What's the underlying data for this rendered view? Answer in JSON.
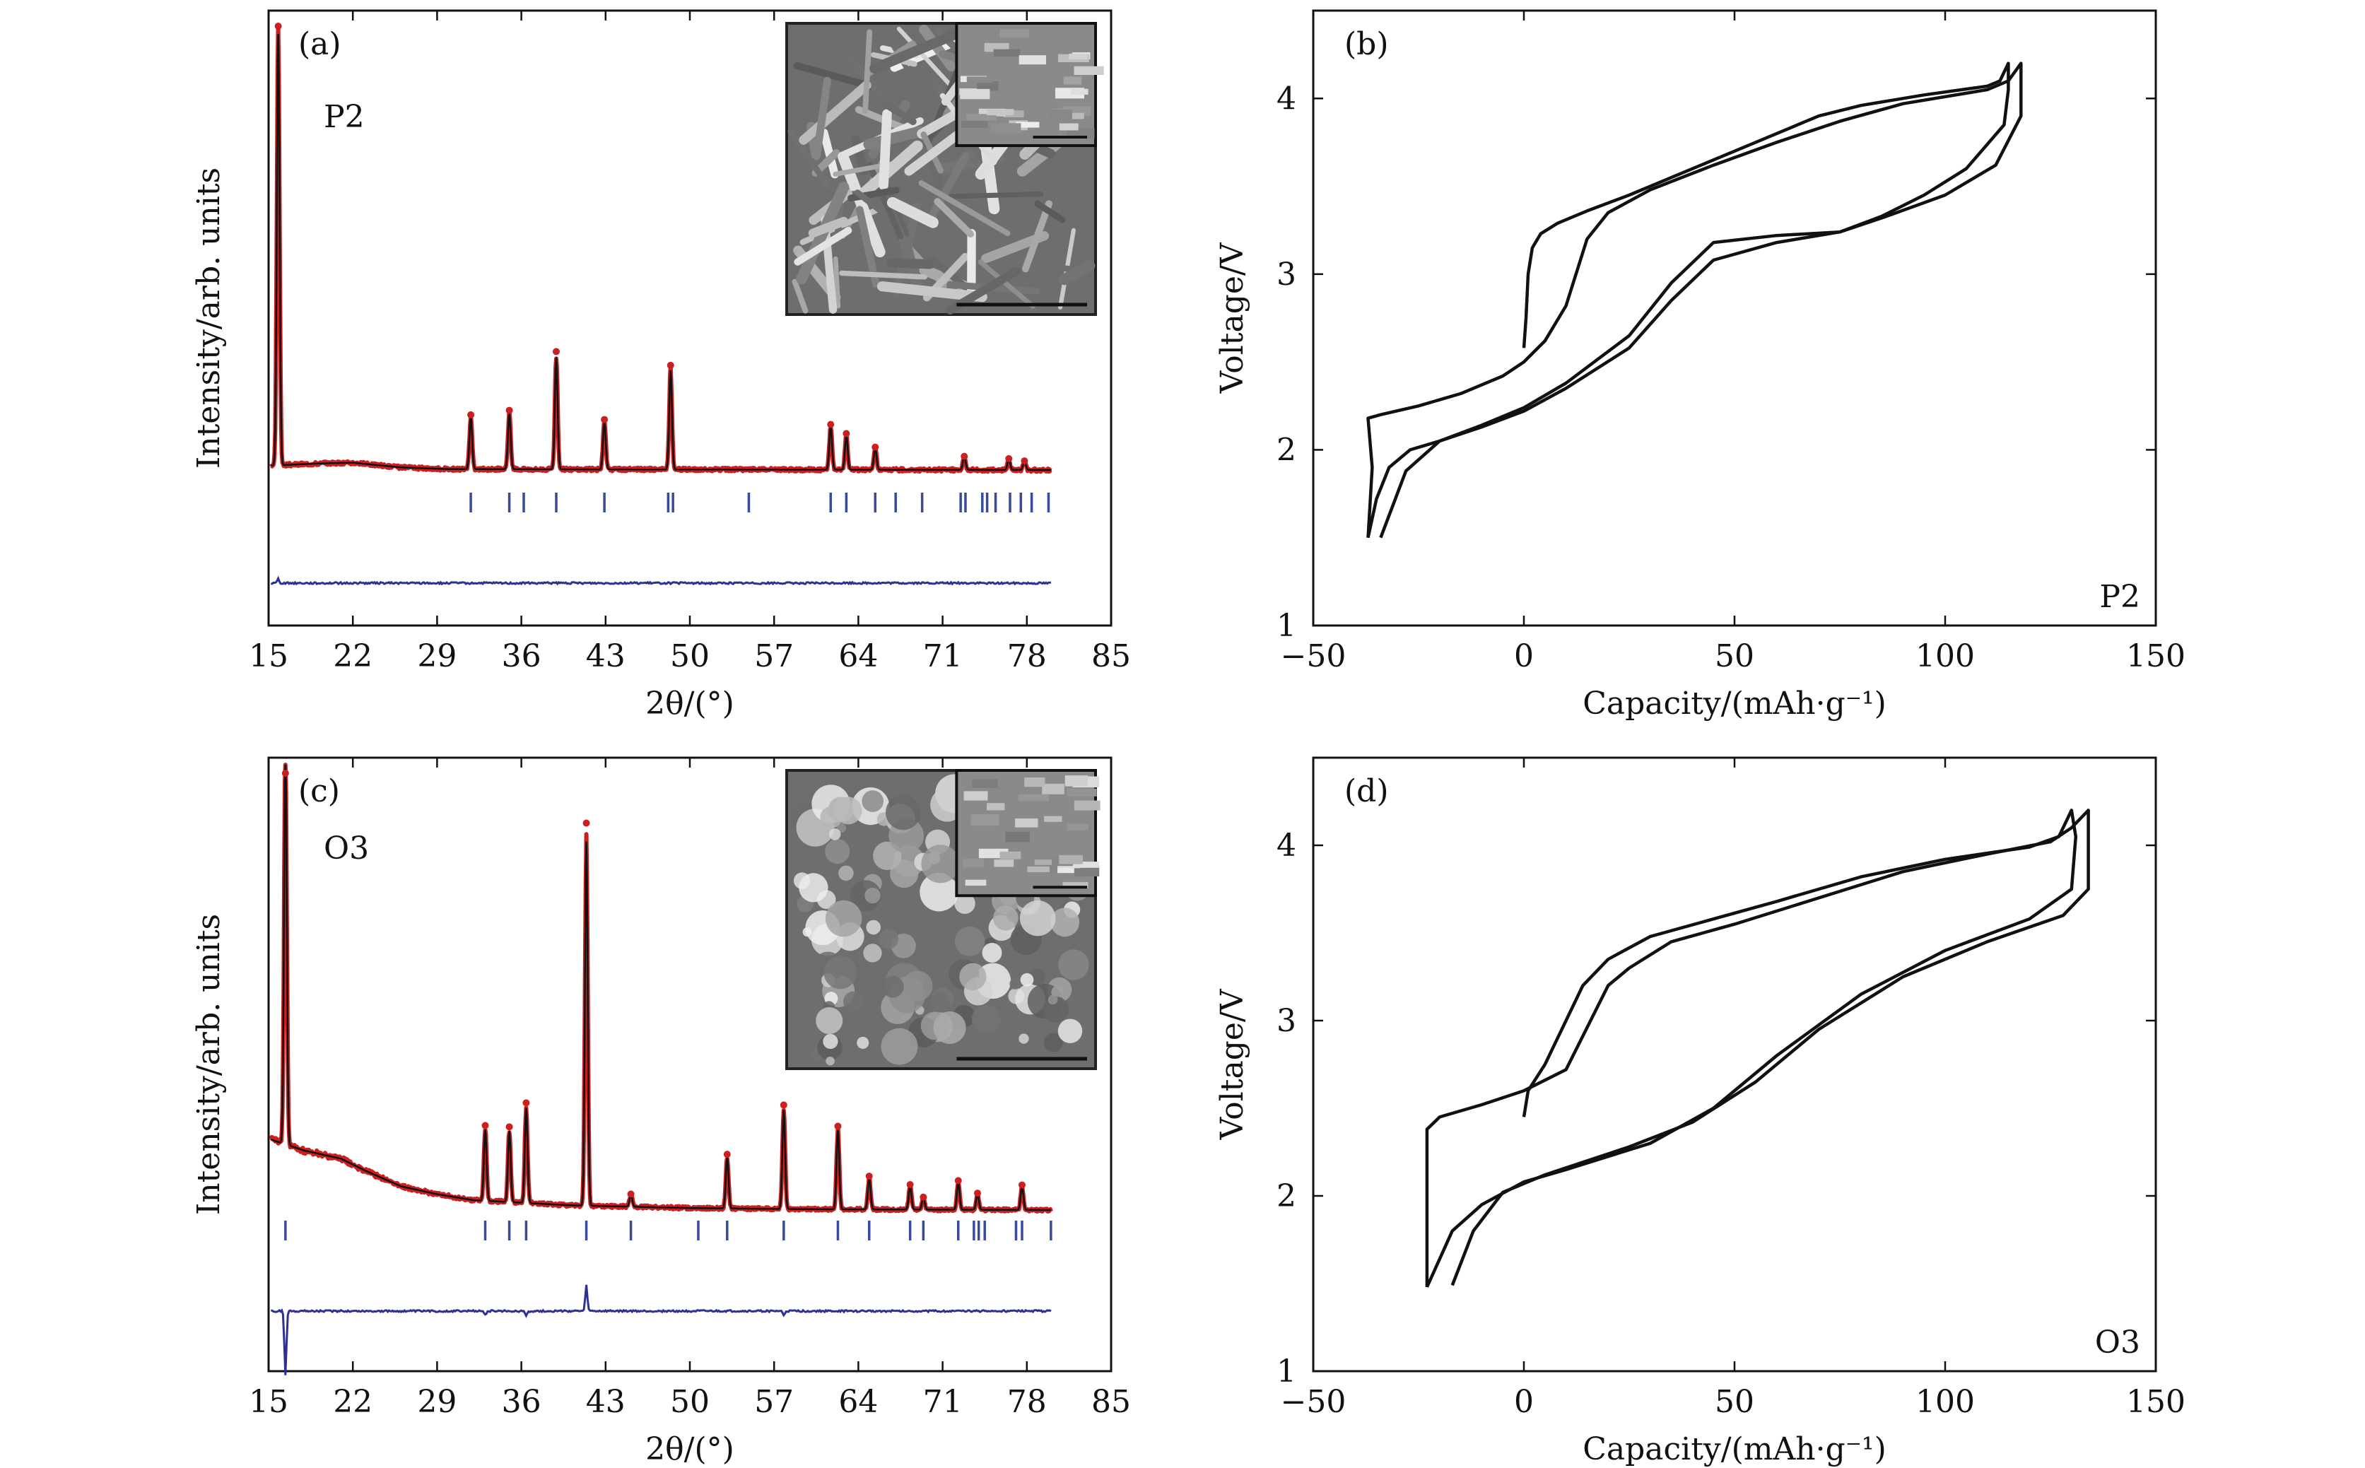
{
  "colors": {
    "observed": "#cc1f1f",
    "calculated": "#111111",
    "difference": "#2e3192",
    "bragg": "#3a4a9a",
    "cycle": "#111111",
    "frame": "#111111"
  },
  "chart_data": [
    {
      "id": "a",
      "type": "line",
      "panel_label": "(a)",
      "sample_label": "P2",
      "xlabel": "2θ/(°)",
      "ylabel": "Intensity/arb. units",
      "xlim": [
        15,
        85
      ],
      "xticks": [
        15,
        22,
        29,
        36,
        43,
        50,
        57,
        64,
        71,
        78,
        85
      ],
      "yticks": [],
      "inset": "SEM micrograph (plate-like particles) with magnified sub-inset",
      "baseline": 1.0,
      "peaks": [
        {
          "x": 15.8,
          "y": 100
        },
        {
          "x": 31.8,
          "y": 12
        },
        {
          "x": 35.0,
          "y": 13
        },
        {
          "x": 38.9,
          "y": 26
        },
        {
          "x": 42.9,
          "y": 11
        },
        {
          "x": 48.4,
          "y": 23
        },
        {
          "x": 61.7,
          "y": 10
        },
        {
          "x": 63.0,
          "y": 8
        },
        {
          "x": 65.4,
          "y": 5
        },
        {
          "x": 72.8,
          "y": 3
        },
        {
          "x": 76.5,
          "y": 2.5
        },
        {
          "x": 77.8,
          "y": 2
        }
      ],
      "bragg_positions": [
        31.8,
        35.0,
        36.2,
        38.9,
        42.9,
        48.2,
        48.6,
        54.9,
        61.7,
        63.0,
        65.4,
        67.1,
        69.3,
        72.5,
        72.9,
        74.3,
        74.7,
        75.4,
        76.6,
        77.5,
        78.4,
        79.8
      ],
      "baseline_shape": [
        [
          15,
          1.0
        ],
        [
          19,
          1.5
        ],
        [
          22,
          1.7
        ],
        [
          26,
          0.6
        ],
        [
          30,
          0.2
        ],
        [
          80,
          0.0
        ]
      ],
      "difference_spikes": [
        {
          "x": 15.8,
          "y": 2
        }
      ]
    },
    {
      "id": "b",
      "type": "line",
      "panel_label": "(b)",
      "sample_label": "P2",
      "xlabel": "Capacity/(mAh·g⁻¹)",
      "ylabel": "Voltage/V",
      "xlim": [
        -50,
        150
      ],
      "ylim": [
        1,
        4.5
      ],
      "xticks": [
        -50,
        0,
        50,
        100,
        150
      ],
      "yticks": [
        1,
        2,
        3,
        4
      ],
      "series": [
        {
          "points": [
            [
              0,
              2.58
            ],
            [
              0.5,
              2.75
            ],
            [
              1,
              3.0
            ],
            [
              2,
              3.15
            ],
            [
              4,
              3.23
            ],
            [
              8,
              3.29
            ],
            [
              15,
              3.36
            ],
            [
              25,
              3.45
            ],
            [
              40,
              3.6
            ],
            [
              55,
              3.75
            ],
            [
              70,
              3.9
            ],
            [
              80,
              3.96
            ],
            [
              95,
              4.02
            ],
            [
              110,
              4.07
            ],
            [
              113,
              4.1
            ],
            [
              115,
              4.2
            ],
            [
              115,
              4.05
            ],
            [
              114,
              3.85
            ],
            [
              105,
              3.6
            ],
            [
              95,
              3.45
            ],
            [
              85,
              3.33
            ],
            [
              75,
              3.24
            ],
            [
              60,
              3.18
            ],
            [
              45,
              3.08
            ],
            [
              35,
              2.85
            ],
            [
              25,
              2.58
            ],
            [
              10,
              2.35
            ],
            [
              0,
              2.22
            ],
            [
              -10,
              2.13
            ],
            [
              -20,
              2.05
            ],
            [
              -27,
              2.0
            ],
            [
              -32,
              1.9
            ],
            [
              -35,
              1.72
            ],
            [
              -37,
              1.5
            ]
          ]
        },
        {
          "points": [
            [
              -37,
              1.5
            ],
            [
              -36,
              1.9
            ],
            [
              -37,
              2.18
            ],
            [
              -34,
              2.2
            ],
            [
              -25,
              2.25
            ],
            [
              -15,
              2.32
            ],
            [
              -5,
              2.42
            ],
            [
              0,
              2.5
            ],
            [
              5,
              2.62
            ],
            [
              10,
              2.82
            ],
            [
              15,
              3.2
            ],
            [
              20,
              3.35
            ],
            [
              30,
              3.48
            ],
            [
              45,
              3.62
            ],
            [
              60,
              3.75
            ],
            [
              75,
              3.87
            ],
            [
              90,
              3.97
            ],
            [
              110,
              4.05
            ],
            [
              115,
              4.1
            ],
            [
              118,
              4.2
            ],
            [
              118,
              3.9
            ],
            [
              112,
              3.62
            ],
            [
              100,
              3.45
            ],
            [
              85,
              3.32
            ],
            [
              75,
              3.24
            ],
            [
              60,
              3.22
            ],
            [
              45,
              3.18
            ],
            [
              35,
              2.95
            ],
            [
              25,
              2.65
            ],
            [
              10,
              2.38
            ],
            [
              0,
              2.24
            ],
            [
              -10,
              2.14
            ],
            [
              -20,
              2.05
            ],
            [
              -28,
              1.88
            ],
            [
              -34,
              1.5
            ]
          ]
        }
      ]
    },
    {
      "id": "c",
      "type": "line",
      "panel_label": "(c)",
      "sample_label": "O3",
      "xlabel": "2θ/(°)",
      "ylabel": "Intensity/arb. units",
      "xlim": [
        15,
        85
      ],
      "xticks": [
        15,
        22,
        29,
        36,
        43,
        50,
        57,
        64,
        71,
        78,
        85
      ],
      "yticks": [],
      "inset": "SEM micrograph (agglomerated fine particles) with magnified sub-inset",
      "baseline": 1.0,
      "peaks": [
        {
          "x": 16.4,
          "y": 100
        },
        {
          "x": 33.0,
          "y": 18
        },
        {
          "x": 35.0,
          "y": 18
        },
        {
          "x": 36.4,
          "y": 24
        },
        {
          "x": 41.4,
          "y": 92
        },
        {
          "x": 45.1,
          "y": 3
        },
        {
          "x": 53.1,
          "y": 13
        },
        {
          "x": 57.8,
          "y": 25
        },
        {
          "x": 62.3,
          "y": 20
        },
        {
          "x": 64.9,
          "y": 8
        },
        {
          "x": 68.3,
          "y": 6
        },
        {
          "x": 69.4,
          "y": 3
        },
        {
          "x": 72.3,
          "y": 7
        },
        {
          "x": 73.9,
          "y": 4
        },
        {
          "x": 77.6,
          "y": 6
        }
      ],
      "bragg_positions": [
        16.4,
        33.0,
        35.0,
        36.4,
        41.4,
        45.1,
        50.7,
        53.1,
        57.8,
        62.3,
        64.9,
        68.3,
        69.4,
        72.3,
        73.6,
        74.0,
        74.5,
        77.1,
        77.6,
        80.0
      ],
      "baseline_shape": [
        [
          15,
          18
        ],
        [
          18,
          15
        ],
        [
          21,
          13
        ],
        [
          23,
          10
        ],
        [
          26,
          6
        ],
        [
          29,
          4
        ],
        [
          32,
          2.5
        ],
        [
          40,
          1.2
        ],
        [
          50,
          0.5
        ],
        [
          60,
          0.2
        ],
        [
          80,
          0.0
        ]
      ],
      "difference_spikes": [
        {
          "x": 16.4,
          "y": -30
        },
        {
          "x": 41.4,
          "y": 12
        },
        {
          "x": 33.0,
          "y": -2
        },
        {
          "x": 36.4,
          "y": -2
        },
        {
          "x": 57.8,
          "y": -2
        }
      ]
    },
    {
      "id": "d",
      "type": "line",
      "panel_label": "(d)",
      "sample_label": "O3",
      "xlabel": "Capacity/(mAh·g⁻¹)",
      "ylabel": "Voltage/V",
      "xlim": [
        -50,
        150
      ],
      "ylim": [
        1,
        4.5
      ],
      "xticks": [
        -50,
        0,
        50,
        100,
        150
      ],
      "yticks": [
        1,
        2,
        3,
        4
      ],
      "series": [
        {
          "points": [
            [
              0,
              2.45
            ],
            [
              1,
              2.6
            ],
            [
              5,
              2.75
            ],
            [
              10,
              3.0
            ],
            [
              14,
              3.2
            ],
            [
              20,
              3.35
            ],
            [
              30,
              3.48
            ],
            [
              45,
              3.58
            ],
            [
              60,
              3.68
            ],
            [
              80,
              3.82
            ],
            [
              100,
              3.92
            ],
            [
              120,
              3.99
            ],
            [
              127,
              4.05
            ],
            [
              130,
              4.2
            ],
            [
              131,
              4.05
            ],
            [
              130,
              3.75
            ],
            [
              120,
              3.58
            ],
            [
              100,
              3.4
            ],
            [
              80,
              3.15
            ],
            [
              60,
              2.8
            ],
            [
              45,
              2.5
            ],
            [
              30,
              2.3
            ],
            [
              10,
              2.15
            ],
            [
              0,
              2.08
            ],
            [
              -10,
              1.95
            ],
            [
              -17,
              1.8
            ],
            [
              -23,
              1.48
            ]
          ]
        },
        {
          "points": [
            [
              -23,
              1.48
            ],
            [
              -23,
              2.2
            ],
            [
              -23,
              2.38
            ],
            [
              -20,
              2.45
            ],
            [
              -10,
              2.52
            ],
            [
              0,
              2.6
            ],
            [
              10,
              2.72
            ],
            [
              20,
              3.2
            ],
            [
              25,
              3.3
            ],
            [
              35,
              3.45
            ],
            [
              50,
              3.55
            ],
            [
              70,
              3.7
            ],
            [
              90,
              3.85
            ],
            [
              110,
              3.95
            ],
            [
              125,
              4.02
            ],
            [
              130,
              4.1
            ],
            [
              134,
              4.2
            ],
            [
              134,
              3.75
            ],
            [
              128,
              3.6
            ],
            [
              110,
              3.45
            ],
            [
              90,
              3.25
            ],
            [
              70,
              2.95
            ],
            [
              55,
              2.65
            ],
            [
              40,
              2.42
            ],
            [
              25,
              2.28
            ],
            [
              5,
              2.12
            ],
            [
              -5,
              2.02
            ],
            [
              -12,
              1.8
            ],
            [
              -17,
              1.49
            ]
          ]
        }
      ]
    }
  ]
}
